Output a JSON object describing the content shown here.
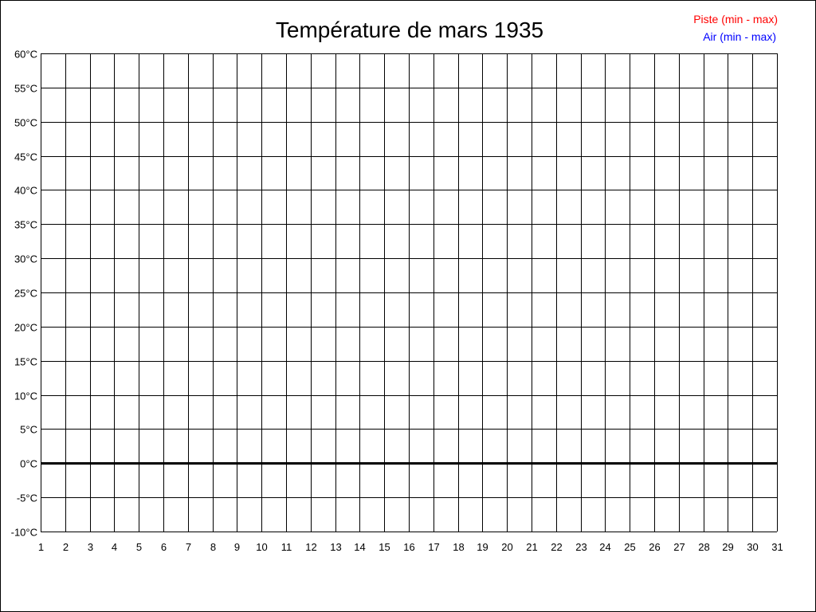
{
  "chart_data": {
    "type": "line",
    "title": "Température de mars 1935",
    "xlabel": "",
    "ylabel": "",
    "x_ticks": [
      "1",
      "2",
      "3",
      "4",
      "5",
      "6",
      "7",
      "8",
      "9",
      "10",
      "11",
      "12",
      "13",
      "14",
      "15",
      "16",
      "17",
      "18",
      "19",
      "20",
      "21",
      "22",
      "23",
      "24",
      "25",
      "26",
      "27",
      "28",
      "29",
      "30",
      "31"
    ],
    "y_ticks": [
      "60°C",
      "55°C",
      "50°C",
      "45°C",
      "40°C",
      "35°C",
      "30°C",
      "25°C",
      "20°C",
      "15°C",
      "10°C",
      "5°C",
      "0°C",
      "-5°C",
      "-10°C"
    ],
    "xlim": [
      1,
      31
    ],
    "ylim": [
      -10,
      60
    ],
    "grid": true,
    "legend_placement": "top-right",
    "series": [
      {
        "name": "Piste (min - max)",
        "color": "#ff0000",
        "values": []
      },
      {
        "name": "Air (min - max)",
        "color": "#0000ff",
        "values": []
      }
    ]
  }
}
